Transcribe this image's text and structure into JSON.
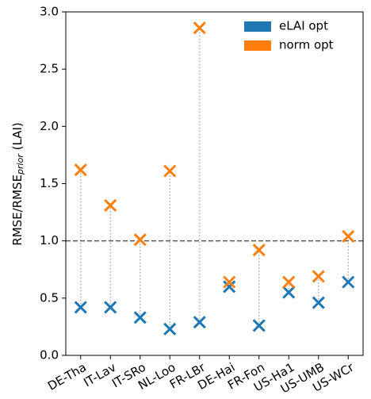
{
  "chart_data": {
    "type": "scatter",
    "ylabel": [
      "RMSE/RMSE",
      "prior",
      " (LAI)"
    ],
    "categories": [
      "DE-Tha",
      "IT-Lav",
      "IT-SRo",
      "NL-Loo",
      "FR-LBr",
      "DE-Hai",
      "FR-Fon",
      "US-Ha1",
      "US-UMB",
      "US-WCr"
    ],
    "series": [
      {
        "name": "eLAI opt",
        "color": "#1f77b4",
        "values": [
          0.42,
          0.42,
          0.33,
          0.23,
          0.29,
          0.6,
          0.26,
          0.55,
          0.46,
          0.64
        ]
      },
      {
        "name": "norm opt",
        "color": "#ff7f0e",
        "values": [
          1.62,
          1.31,
          1.01,
          1.61,
          2.86,
          0.64,
          0.92,
          0.64,
          0.69,
          1.04
        ]
      }
    ],
    "ylim": [
      0,
      3
    ],
    "yticks": [
      {
        "value": 0,
        "label": "0.0"
      },
      {
        "value": 0.5,
        "label": "0.5"
      },
      {
        "value": 1,
        "label": "1.0"
      },
      {
        "value": 1.5,
        "label": "1.5"
      },
      {
        "value": 2,
        "label": "2.0"
      },
      {
        "value": 2.5,
        "label": "2.5"
      },
      {
        "value": 3,
        "label": "3.0"
      }
    ],
    "hline": 1,
    "legend": "upper right"
  }
}
